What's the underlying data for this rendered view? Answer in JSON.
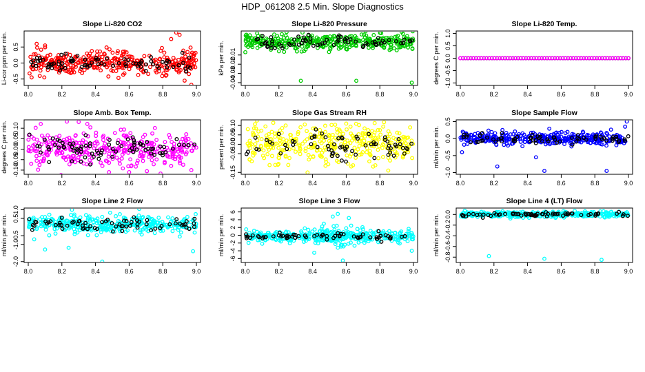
{
  "page": {
    "title": "HDP_061208  2.5 Min. Slope Diagnostics"
  },
  "chart_data": [
    {
      "id": "co2",
      "type": "scatter",
      "title": "Slope Li-820 CO2",
      "ylabel": "Li-cor ppm per min.",
      "xlabel": "",
      "xlim": [
        8.0,
        9.0
      ],
      "ylim": [
        -0.7,
        1.0
      ],
      "xticks": [
        "8.0",
        "8.2",
        "8.4",
        "8.6",
        "8.8",
        "9.0"
      ],
      "yticks": [
        {
          "v": -0.5,
          "label": "-0.5"
        },
        {
          "v": 0.0,
          "label": "0.0"
        },
        {
          "v": 0.5,
          "label": "0.5"
        }
      ],
      "colors": [
        "#ff0000",
        "#000000"
      ],
      "spread": 0.18,
      "center": 0.0,
      "n_colored": 360,
      "n_black": 80,
      "outliers": [
        [
          8.88,
          0.95
        ],
        [
          8.9,
          0.88
        ],
        [
          8.97,
          -0.68
        ],
        [
          8.02,
          -0.45
        ],
        [
          8.05,
          0.6
        ],
        [
          8.85,
          0.75
        ],
        [
          8.93,
          -0.55
        ],
        [
          8.1,
          0.55
        ]
      ]
    },
    {
      "id": "pressure",
      "type": "scatter",
      "title": "Slope Li-820 Pressure",
      "ylabel": "kPa per min.",
      "xlabel": "",
      "xlim": [
        8.0,
        9.0
      ],
      "ylim": [
        -0.043,
        0.016
      ],
      "xticks": [
        "8.0",
        "8.2",
        "8.4",
        "8.6",
        "8.8",
        "9.0"
      ],
      "yticks": [
        {
          "v": -0.04,
          "label": "-0.04"
        },
        {
          "v": -0.03,
          "label": "-0.03"
        },
        {
          "v": -0.02,
          "label": "-0.02"
        },
        {
          "v": -0.01,
          "label": "-0.01"
        }
      ],
      "colors": [
        "#00cc00",
        "#000000"
      ],
      "spread": 0.004,
      "center": 0.004,
      "n_colored": 360,
      "n_black": 70,
      "outliers": [
        [
          8.33,
          -0.038
        ],
        [
          8.66,
          -0.038
        ],
        [
          8.99,
          -0.04
        ],
        [
          8.93,
          0.015
        ],
        [
          8.0,
          -0.007
        ],
        [
          8.2,
          -0.006
        ]
      ]
    },
    {
      "id": "temp",
      "type": "scatter",
      "title": "Slope Li-820 Temp.",
      "ylabel": "degrees C per min.",
      "xlabel": "",
      "xlim": [
        8.0,
        9.0
      ],
      "ylim": [
        -1.1,
        1.1
      ],
      "xticks": [
        "8.0",
        "8.2",
        "8.4",
        "8.6",
        "8.8",
        "9.0"
      ],
      "yticks": [
        {
          "v": -1.0,
          "label": "-1.0"
        },
        {
          "v": -0.5,
          "label": "-0.5"
        },
        {
          "v": 0.0,
          "label": "0.0"
        },
        {
          "v": 0.5,
          "label": "0.5"
        },
        {
          "v": 1.0,
          "label": "1.0"
        }
      ],
      "colors": [
        "#ff00ff",
        "#000000"
      ],
      "flat": true,
      "center": 0.0,
      "n_flat": 65,
      "outliers": []
    },
    {
      "id": "ambbox",
      "type": "scatter",
      "title": "Slope Amb. Box Temp.",
      "ylabel": "degrees C per min.",
      "xlabel": "",
      "xlim": [
        8.0,
        9.0
      ],
      "ylim": [
        -0.12,
        0.14
      ],
      "xticks": [
        "8.0",
        "8.2",
        "8.4",
        "8.6",
        "8.8",
        "9.0"
      ],
      "yticks": [
        {
          "v": -0.1,
          "label": "-0.10"
        },
        {
          "v": -0.05,
          "label": "-0.05"
        },
        {
          "v": 0.0,
          "label": "0.00"
        },
        {
          "v": 0.05,
          "label": "0.05"
        },
        {
          "v": 0.1,
          "label": "0.10"
        }
      ],
      "colors": [
        "#ff00ff",
        "#000000"
      ],
      "spread": 0.045,
      "center": 0.0,
      "n_colored": 360,
      "n_black": 80,
      "outliers": [
        [
          8.3,
          0.13
        ],
        [
          8.48,
          -0.11
        ],
        [
          8.6,
          -0.11
        ],
        [
          8.97,
          -0.1
        ]
      ]
    },
    {
      "id": "rh",
      "type": "scatter",
      "title": "Slope Gas Stream RH",
      "ylabel": "percent per min.",
      "xlabel": "",
      "xlim": [
        8.0,
        9.0
      ],
      "ylim": [
        -0.16,
        0.13
      ],
      "xticks": [
        "8.0",
        "8.2",
        "8.4",
        "8.6",
        "8.8",
        "9.0"
      ],
      "yticks": [
        {
          "v": -0.15,
          "label": "-0.15"
        },
        {
          "v": -0.05,
          "label": "-0.05"
        },
        {
          "v": 0.0,
          "label": "0.00"
        },
        {
          "v": 0.05,
          "label": "0.05"
        },
        {
          "v": 0.1,
          "label": "0.10"
        }
      ],
      "colors": [
        "#ffff00",
        "#000000"
      ],
      "spread": 0.05,
      "center": 0.0,
      "n_colored": 360,
      "n_black": 70,
      "outliers": [
        [
          8.37,
          -0.15
        ],
        [
          8.85,
          -0.14
        ],
        [
          8.98,
          0.09
        ],
        [
          8.6,
          0.11
        ]
      ]
    },
    {
      "id": "sample",
      "type": "scatter",
      "title": "Slope Sample Flow",
      "ylabel": "ml/min per min.",
      "xlabel": "",
      "xlim": [
        8.0,
        9.0
      ],
      "ylim": [
        -1.05,
        0.55
      ],
      "xticks": [
        "8.0",
        "8.2",
        "8.4",
        "8.6",
        "8.8",
        "9.0"
      ],
      "yticks": [
        {
          "v": -1.0,
          "label": "-1.0"
        },
        {
          "v": -0.5,
          "label": "-0.5"
        },
        {
          "v": 0.0,
          "label": "0.0"
        },
        {
          "v": 0.5,
          "label": "0.5"
        }
      ],
      "colors": [
        "#0000ff",
        "#000000"
      ],
      "spread": 0.09,
      "center": 0.0,
      "n_colored": 360,
      "n_black": 70,
      "outliers": [
        [
          8.99,
          0.5
        ],
        [
          8.98,
          0.35
        ],
        [
          8.5,
          -0.95
        ],
        [
          8.87,
          -0.95
        ],
        [
          8.22,
          -0.82
        ],
        [
          8.01,
          -0.4
        ],
        [
          8.45,
          -0.55
        ]
      ]
    },
    {
      "id": "line2",
      "type": "scatter",
      "title": "Slope Line 2 Flow",
      "ylabel": "ml/min per min.",
      "xlabel": "",
      "xlim": [
        8.0,
        9.0
      ],
      "ylim": [
        -2.05,
        1.1
      ],
      "xticks": [
        "8.0",
        "8.2",
        "8.4",
        "8.6",
        "8.8",
        "9.0"
      ],
      "yticks": [
        {
          "v": -2.0,
          "label": "-2.0"
        },
        {
          "v": -1.0,
          "label": "-1.0"
        },
        {
          "v": -0.5,
          "label": "-0.5"
        },
        {
          "v": 0.5,
          "label": "0.5"
        },
        {
          "v": 1.0,
          "label": "1.0"
        }
      ],
      "colors": [
        "#00ffff",
        "#000000"
      ],
      "spread": 0.25,
      "center": 0.15,
      "n_colored": 360,
      "n_black": 70,
      "outliers": [
        [
          8.44,
          -2.0
        ],
        [
          8.98,
          -1.4
        ],
        [
          8.66,
          1.05
        ],
        [
          8.26,
          1.0
        ],
        [
          8.24,
          -1.2
        ],
        [
          8.1,
          -1.3
        ]
      ]
    },
    {
      "id": "line3",
      "type": "scatter",
      "title": "Slope Line 3 Flow",
      "ylabel": "ml/min per min.",
      "xlabel": "",
      "xlim": [
        8.0,
        9.0
      ],
      "ylim": [
        -7.0,
        7.0
      ],
      "xticks": [
        "8.0",
        "8.2",
        "8.4",
        "8.6",
        "8.8",
        "9.0"
      ],
      "yticks": [
        {
          "v": -6,
          "label": "-6"
        },
        {
          "v": -4,
          "label": "-4"
        },
        {
          "v": -2,
          "label": "-2"
        },
        {
          "v": 0,
          "label": "0"
        },
        {
          "v": 2,
          "label": "2"
        },
        {
          "v": 4,
          "label": "4"
        },
        {
          "v": 6,
          "label": "6"
        }
      ],
      "colors": [
        "#00ffff",
        "#000000"
      ],
      "spread": 0.7,
      "center": -0.3,
      "n_colored": 300,
      "n_black": 65,
      "burst": {
        "x": 8.55,
        "width": 0.09,
        "amp": 3.2,
        "n": 80
      },
      "outliers": [
        [
          8.58,
          -6.5
        ],
        [
          8.55,
          5.5
        ],
        [
          8.99,
          -4.0
        ],
        [
          8.41,
          -4.5
        ],
        [
          8.52,
          4.8
        ]
      ]
    },
    {
      "id": "line4",
      "type": "scatter",
      "title": "Slope Line 4 (LT) Flow",
      "ylabel": "ml/min per min.",
      "xlabel": "",
      "xlim": [
        8.0,
        9.0
      ],
      "ylim": [
        -0.9,
        0.12
      ],
      "xticks": [
        "8.0",
        "8.2",
        "8.4",
        "8.6",
        "8.8",
        "9.0"
      ],
      "yticks": [
        {
          "v": -0.8,
          "label": "-0.8"
        },
        {
          "v": -0.6,
          "label": "-0.6"
        },
        {
          "v": -0.4,
          "label": "-0.4"
        },
        {
          "v": -0.2,
          "label": "-0.2"
        },
        {
          "v": 0.0,
          "label": "0.0"
        }
      ],
      "colors": [
        "#00ffff",
        "#000000"
      ],
      "spread": 0.025,
      "center": 0.0,
      "n_colored": 360,
      "n_black": 70,
      "outliers": [
        [
          8.17,
          -0.78
        ],
        [
          8.5,
          -0.83
        ],
        [
          8.84,
          -0.85
        ]
      ]
    }
  ]
}
